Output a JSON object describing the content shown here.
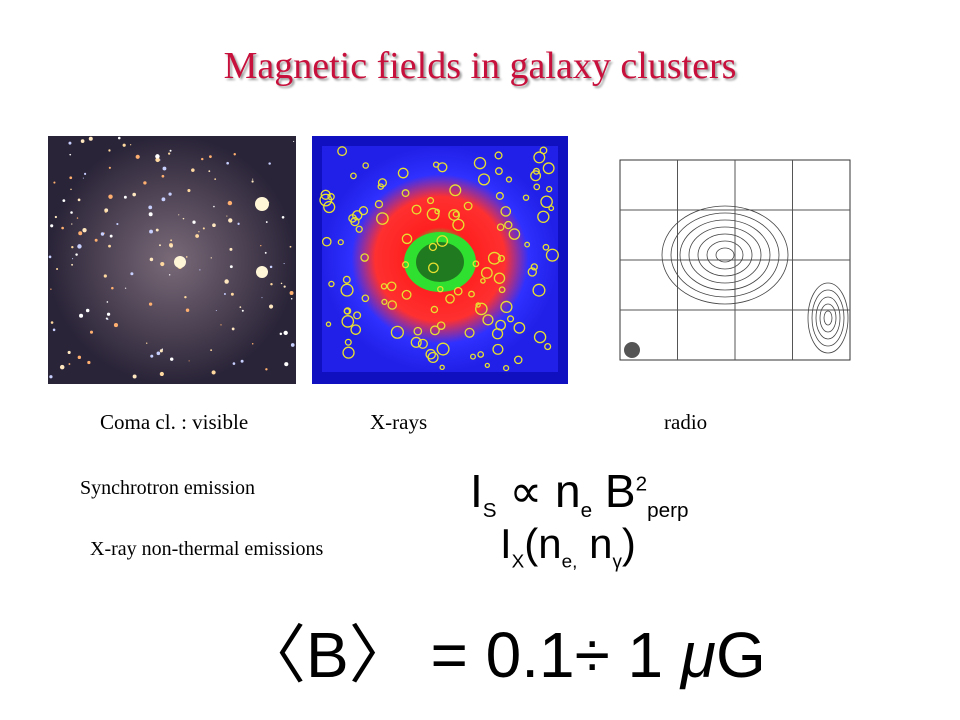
{
  "title": "Magnetic fields in galaxy clusters",
  "panels": [
    {
      "caption": "Coma cl. : visible"
    },
    {
      "caption": "X-rays"
    },
    {
      "caption": "radio"
    }
  ],
  "rows": [
    {
      "label": "Synchrotron emission",
      "formula": [
        "I",
        "S",
        "∝",
        "n",
        "e",
        "B",
        "2",
        "perp"
      ]
    },
    {
      "label": "X-ray non-thermal emissions",
      "formula": [
        "I",
        "X",
        "(n",
        "e,",
        "n",
        "γ",
        ")"
      ]
    }
  ],
  "result": [
    "〈",
    "B",
    "〉",
    "= 0.1",
    "÷",
    "1",
    "μ",
    "G"
  ]
}
